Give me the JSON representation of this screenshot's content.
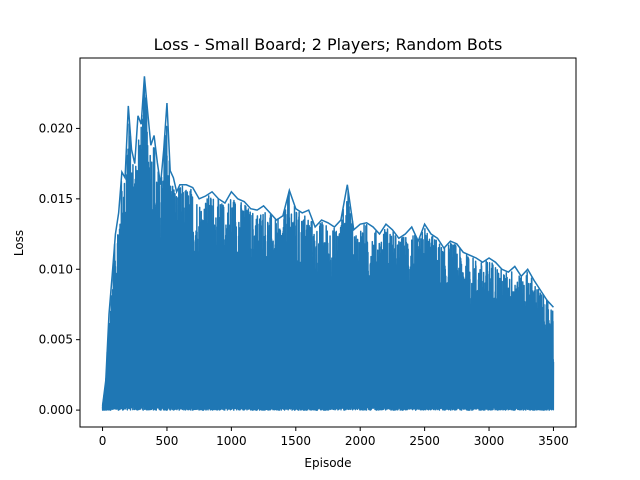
{
  "chart_data": {
    "type": "line",
    "title": "Loss - Small Board; 2 Players; Random Bots",
    "xlabel": "Episode",
    "ylabel": "Loss",
    "xlim": [
      -175,
      3675
    ],
    "ylim": [
      -0.0012,
      0.025
    ],
    "grid": false,
    "x_ticks": [
      0,
      500,
      1000,
      1500,
      2000,
      2500,
      3000,
      3500
    ],
    "x_tick_labels": [
      "0",
      "500",
      "1000",
      "1500",
      "2000",
      "2500",
      "3000",
      "3500"
    ],
    "y_ticks": [
      0.0,
      0.005,
      0.01,
      0.015,
      0.02
    ],
    "y_tick_labels": [
      "0.000",
      "0.005",
      "0.010",
      "0.015",
      "0.020"
    ],
    "series": [
      {
        "color": "#1f77b4",
        "episodes": [
          0,
          3500
        ],
        "envelope": {
          "x": [
            0,
            25,
            50,
            75,
            100,
            125,
            150,
            175,
            200,
            225,
            250,
            275,
            300,
            325,
            350,
            375,
            400,
            425,
            450,
            475,
            500,
            525,
            550,
            575,
            600,
            650,
            700,
            750,
            800,
            850,
            900,
            950,
            1000,
            1050,
            1100,
            1150,
            1200,
            1250,
            1300,
            1350,
            1400,
            1450,
            1500,
            1550,
            1600,
            1650,
            1700,
            1750,
            1800,
            1850,
            1900,
            1950,
            2000,
            2050,
            2100,
            2150,
            2200,
            2250,
            2300,
            2350,
            2400,
            2450,
            2500,
            2550,
            2600,
            2650,
            2700,
            2750,
            2800,
            2850,
            2900,
            2950,
            3000,
            3050,
            3100,
            3150,
            3200,
            3250,
            3300,
            3350,
            3400,
            3450,
            3500
          ],
          "y_max": [
            0.0003,
            0.0021,
            0.0068,
            0.0096,
            0.0125,
            0.014,
            0.0169,
            0.0165,
            0.0216,
            0.0185,
            0.0175,
            0.0209,
            0.0203,
            0.0237,
            0.0212,
            0.0188,
            0.0195,
            0.0176,
            0.016,
            0.0185,
            0.0218,
            0.017,
            0.0165,
            0.0155,
            0.016,
            0.016,
            0.0158,
            0.015,
            0.0152,
            0.0155,
            0.015,
            0.0147,
            0.0155,
            0.015,
            0.0148,
            0.0143,
            0.0142,
            0.0145,
            0.014,
            0.0135,
            0.0138,
            0.0156,
            0.0143,
            0.014,
            0.0142,
            0.013,
            0.0135,
            0.0133,
            0.013,
            0.0135,
            0.016,
            0.0128,
            0.0132,
            0.0133,
            0.013,
            0.0125,
            0.0132,
            0.0128,
            0.0122,
            0.0125,
            0.013,
            0.012,
            0.0132,
            0.0125,
            0.0122,
            0.0115,
            0.012,
            0.0118,
            0.0112,
            0.011,
            0.0108,
            0.0105,
            0.0108,
            0.0105,
            0.01,
            0.0098,
            0.0102,
            0.0095,
            0.01,
            0.0092,
            0.0085,
            0.0078,
            0.0073
          ],
          "y_min": [
            0.0,
            0.0,
            0.0,
            0.0,
            0.0,
            0.0,
            0.0,
            0.0,
            0.0,
            0.0,
            0.0,
            0.0,
            0.0,
            0.0,
            0.0,
            0.0,
            0.0,
            0.0,
            0.0,
            0.0,
            0.0,
            0.0,
            0.0,
            0.0,
            0.0,
            0.0,
            0.0,
            0.0,
            0.0,
            0.0,
            0.0,
            0.0,
            0.0,
            0.0,
            0.0,
            0.0,
            0.0,
            0.0,
            0.0,
            0.0,
            0.0,
            0.0,
            0.0,
            0.0,
            0.0,
            0.0,
            0.0,
            0.0,
            0.0,
            0.0,
            0.0,
            0.0,
            0.0,
            0.0,
            0.0,
            0.0,
            0.0,
            0.0,
            0.0,
            0.0,
            0.0,
            0.0,
            0.0,
            0.0,
            0.0,
            0.0,
            0.0,
            0.0,
            0.0,
            0.0,
            0.0,
            0.0,
            0.0,
            0.0,
            0.0,
            0.0,
            0.0,
            0.0,
            0.0,
            0.0,
            0.0,
            0.0,
            0.0
          ]
        }
      }
    ]
  }
}
